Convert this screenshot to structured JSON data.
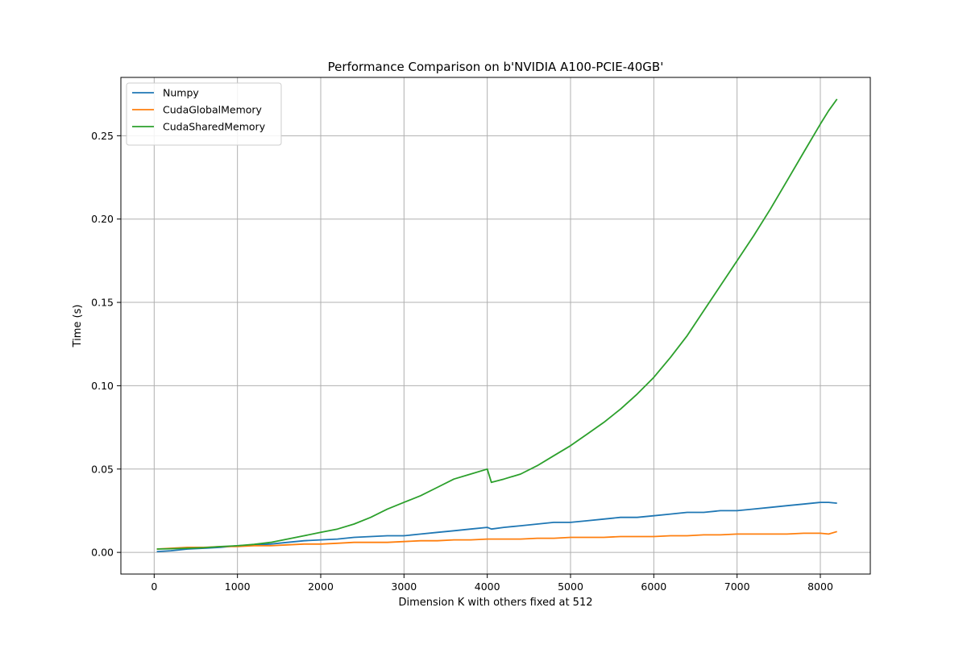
{
  "chart_data": {
    "type": "line",
    "title": "Performance Comparison on b'NVIDIA A100-PCIE-40GB'",
    "xlabel": "Dimension K with others fixed at 512",
    "ylabel": "Time (s)",
    "xlim": [
      -400,
      8600
    ],
    "ylim": [
      -0.013,
      0.285
    ],
    "xticks": [
      0,
      1000,
      2000,
      3000,
      4000,
      5000,
      6000,
      7000,
      8000
    ],
    "xtick_labels": [
      "0",
      "1000",
      "2000",
      "3000",
      "4000",
      "5000",
      "6000",
      "7000",
      "8000"
    ],
    "yticks": [
      0.0,
      0.05,
      0.1,
      0.15,
      0.2,
      0.25
    ],
    "ytick_labels": [
      "0.00",
      "0.05",
      "0.10",
      "0.15",
      "0.20",
      "0.25"
    ],
    "grid": true,
    "legend_position": "upper-left",
    "x": [
      32,
      200,
      400,
      600,
      800,
      1000,
      1200,
      1400,
      1600,
      1800,
      2000,
      2200,
      2400,
      2600,
      2800,
      3000,
      3200,
      3400,
      3600,
      3800,
      4000,
      4050,
      4200,
      4400,
      4600,
      4800,
      5000,
      5200,
      5400,
      5600,
      5800,
      6000,
      6200,
      6400,
      6600,
      6800,
      7000,
      7200,
      7400,
      7600,
      7800,
      8000,
      8100,
      8200
    ],
    "series": [
      {
        "name": "Numpy",
        "color": "#1f77b4",
        "values": [
          0.0005,
          0.001,
          0.002,
          0.0025,
          0.003,
          0.004,
          0.0045,
          0.005,
          0.006,
          0.007,
          0.0075,
          0.008,
          0.009,
          0.0095,
          0.01,
          0.01,
          0.011,
          0.012,
          0.013,
          0.014,
          0.015,
          0.014,
          0.015,
          0.016,
          0.017,
          0.018,
          0.018,
          0.019,
          0.02,
          0.021,
          0.021,
          0.022,
          0.023,
          0.024,
          0.024,
          0.025,
          0.025,
          0.026,
          0.027,
          0.028,
          0.029,
          0.03,
          0.03,
          0.0295
        ]
      },
      {
        "name": "CudaGlobalMemory",
        "color": "#ff7f0e",
        "values": [
          0.002,
          0.0025,
          0.003,
          0.003,
          0.0035,
          0.0035,
          0.004,
          0.004,
          0.0045,
          0.005,
          0.005,
          0.0055,
          0.006,
          0.006,
          0.006,
          0.0065,
          0.007,
          0.007,
          0.0075,
          0.0075,
          0.008,
          0.008,
          0.008,
          0.008,
          0.0085,
          0.0085,
          0.009,
          0.009,
          0.009,
          0.0095,
          0.0095,
          0.0095,
          0.01,
          0.01,
          0.0105,
          0.0105,
          0.011,
          0.011,
          0.011,
          0.011,
          0.0115,
          0.0115,
          0.011,
          0.0125
        ]
      },
      {
        "name": "CudaSharedMemory",
        "color": "#2ca02c",
        "values": [
          0.002,
          0.0022,
          0.0025,
          0.0028,
          0.0035,
          0.004,
          0.0048,
          0.006,
          0.008,
          0.01,
          0.012,
          0.014,
          0.017,
          0.021,
          0.026,
          0.03,
          0.034,
          0.039,
          0.044,
          0.047,
          0.05,
          0.042,
          0.044,
          0.047,
          0.052,
          0.058,
          0.064,
          0.071,
          0.078,
          0.086,
          0.095,
          0.105,
          0.117,
          0.13,
          0.145,
          0.16,
          0.175,
          0.19,
          0.206,
          0.223,
          0.24,
          0.257,
          0.265,
          0.272
        ]
      }
    ]
  }
}
